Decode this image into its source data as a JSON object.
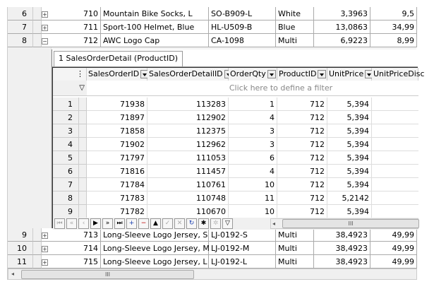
{
  "outer_rows_top": [
    {
      "num": "6",
      "id": "710",
      "name": "Mountain Bike Socks, L",
      "number": "SO-B909-L",
      "color": "White",
      "cost": "3,3963",
      "price": "9,5",
      "expanded": false
    },
    {
      "num": "7",
      "id": "711",
      "name": "Sport-100 Helmet, Blue",
      "number": "HL-U509-B",
      "color": "Blue",
      "cost": "13,0863",
      "price": "34,99",
      "expanded": false
    },
    {
      "num": "8",
      "id": "712",
      "name": "AWC Logo Cap",
      "number": "CA-1098",
      "color": "Multi",
      "cost": "6,9223",
      "price": "8,99",
      "expanded": true
    }
  ],
  "detail": {
    "tab_label": "1 SalesOrderDetail (ProductID)",
    "columns": [
      "SalesOrderID",
      "SalesOrderDetailID",
      "OrderQty",
      "ProductID",
      "UnitPrice",
      "UnitPriceDisc"
    ],
    "filter_text": "Click here to define a filter",
    "rows": [
      [
        "1",
        "71938",
        "113283",
        "1",
        "712",
        "5,394"
      ],
      [
        "2",
        "71897",
        "112902",
        "4",
        "712",
        "5,394"
      ],
      [
        "3",
        "71858",
        "112375",
        "3",
        "712",
        "5,394"
      ],
      [
        "4",
        "71902",
        "112962",
        "3",
        "712",
        "5,394"
      ],
      [
        "5",
        "71797",
        "111053",
        "6",
        "712",
        "5,394"
      ],
      [
        "6",
        "71816",
        "111457",
        "4",
        "712",
        "5,394"
      ],
      [
        "7",
        "71784",
        "110761",
        "10",
        "712",
        "5,394"
      ],
      [
        "8",
        "71783",
        "110748",
        "11",
        "712",
        "5,2142"
      ],
      [
        "9",
        "71782",
        "110670",
        "10",
        "712",
        "5,394"
      ]
    ],
    "navigator": [
      "first",
      "prev-page",
      "prev",
      "next",
      "next-page",
      "last",
      "insert",
      "delete",
      "edit",
      "post",
      "cancel",
      "refresh",
      "bookmark",
      "goto-bookmark",
      "filter"
    ]
  },
  "outer_rows_bottom": [
    {
      "num": "9",
      "id": "713",
      "name": "Long-Sleeve Logo Jersey, S",
      "number": "LJ-0192-S",
      "color": "Multi",
      "cost": "38,4923",
      "price": "49,99"
    },
    {
      "num": "10",
      "id": "714",
      "name": "Long-Sleeve Logo Jersey, M",
      "number": "LJ-0192-M",
      "color": "Multi",
      "cost": "38,4923",
      "price": "49,99"
    },
    {
      "num": "11",
      "id": "715",
      "name": "Long-Sleeve Logo Jersey, L",
      "number": "LJ-0192-L",
      "color": "Multi",
      "cost": "38,4923",
      "price": "49,99"
    }
  ]
}
